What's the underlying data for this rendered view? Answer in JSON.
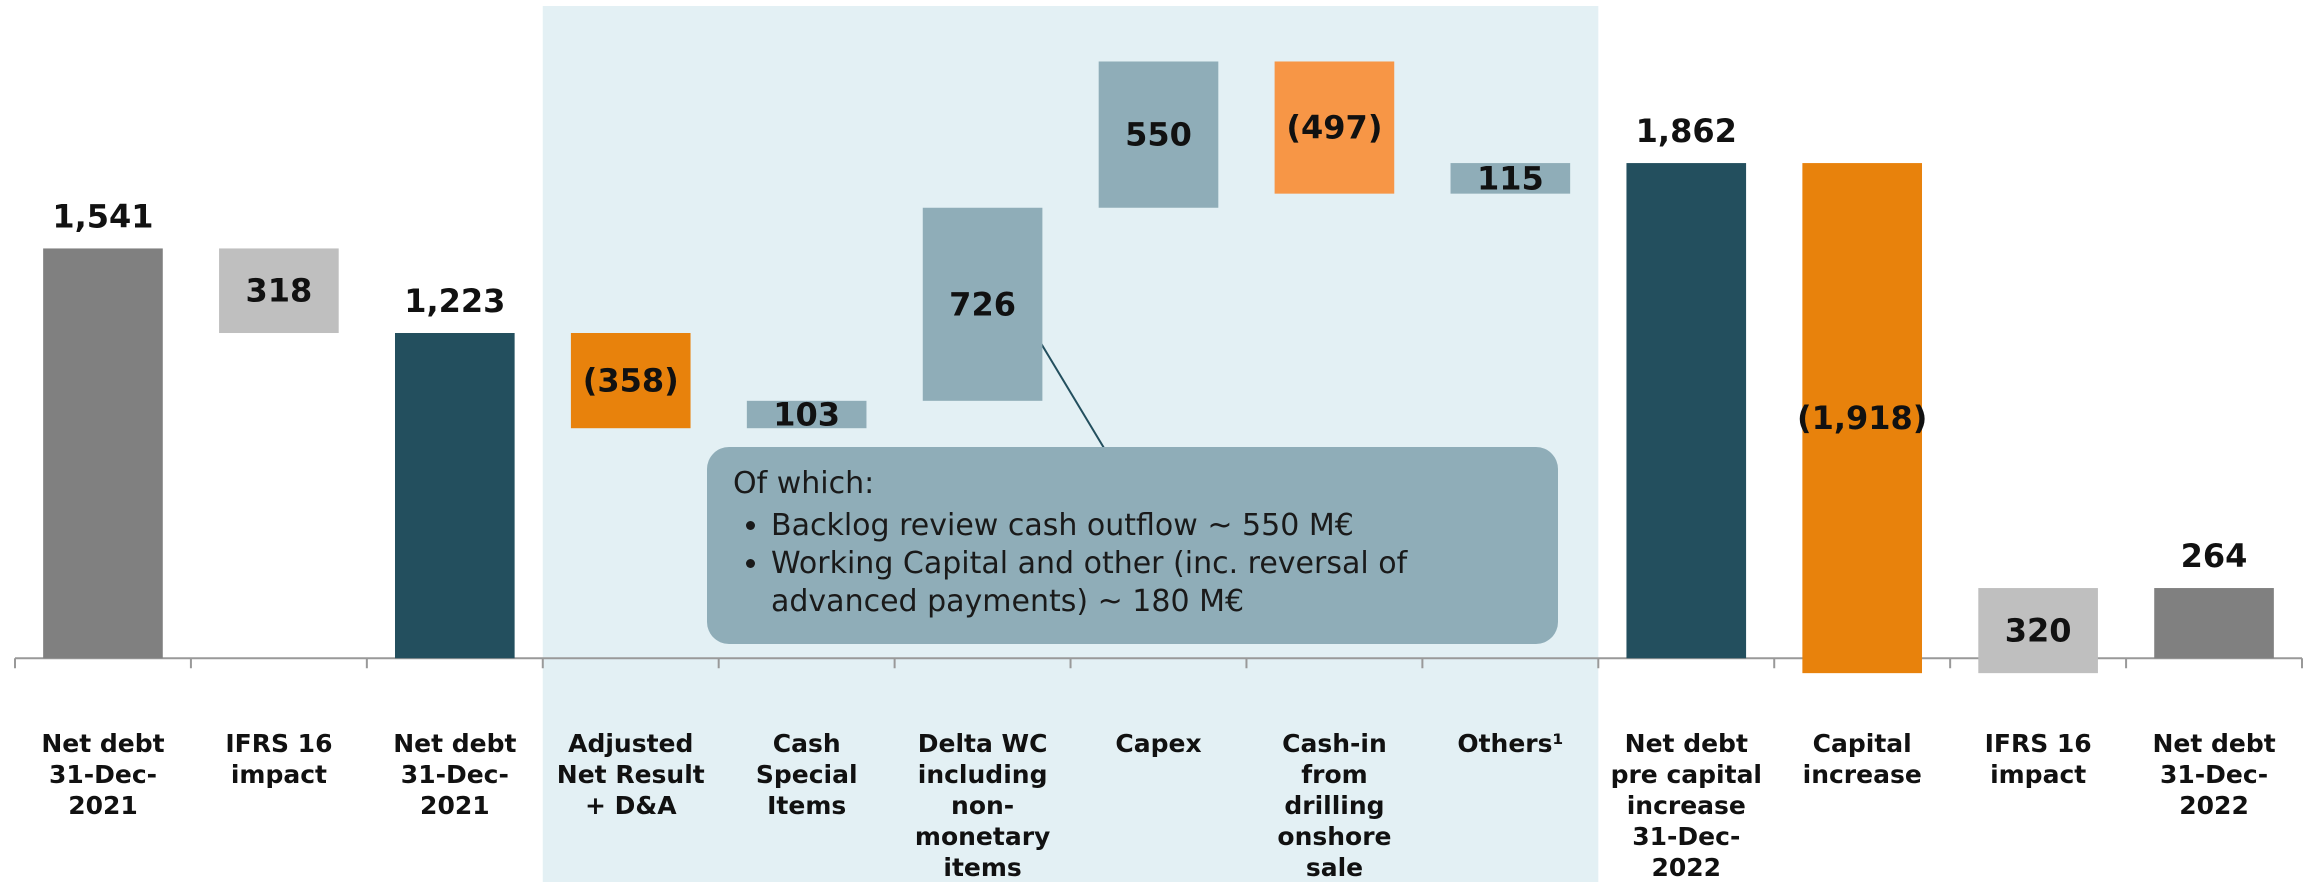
{
  "chart_data": {
    "type": "waterfall",
    "categories": [
      "Net debt\n31-Dec-2021",
      "IFRS 16\nimpact",
      "Net debt\n31-Dec-2021",
      "Adjusted\nNet Result\n+ D&A",
      "Cash\nSpecial\nItems",
      "Delta WC\nincluding\nnon-monetary\nitems",
      "Capex",
      "Cash-in from\ndrilling\nonshore sale",
      "Others¹",
      "Net debt\npre capital\nincrease\n31-Dec-2022",
      "Capital\nincrease",
      "IFRS 16\nimpact",
      "Net debt\n31-Dec-2022"
    ],
    "measure": [
      "total",
      "decrease",
      "total",
      "decrease",
      "increase",
      "increase",
      "increase",
      "decrease",
      "increase",
      "total",
      "decrease",
      "increase",
      "total"
    ],
    "values": [
      1541,
      318,
      1223,
      -358,
      103,
      726,
      550,
      -497,
      115,
      1862,
      -1918,
      320,
      264
    ],
    "value_labels": [
      "1,541",
      "318",
      "1,223",
      "(358)",
      "103",
      "726",
      "550",
      "(497)",
      "115",
      "1,862",
      "(1,918)",
      "320",
      "264"
    ],
    "colors": [
      "#808080",
      "#bfbfbf",
      "#234f5e",
      "#e8820c",
      "#8fadb8",
      "#8fadb8",
      "#8fadb8",
      "#f79646",
      "#8fadb8",
      "#234f5e",
      "#e8820c",
      "#bfbfbf",
      "#808080"
    ],
    "ylim": [
      -800,
      2400
    ],
    "annotation": {
      "title": "Of which:",
      "items": [
        "Backlog review cash outflow ~ 550 M€",
        "Working Capital and other (inc. reversal of advanced payments) ~ 180 M€"
      ]
    }
  }
}
